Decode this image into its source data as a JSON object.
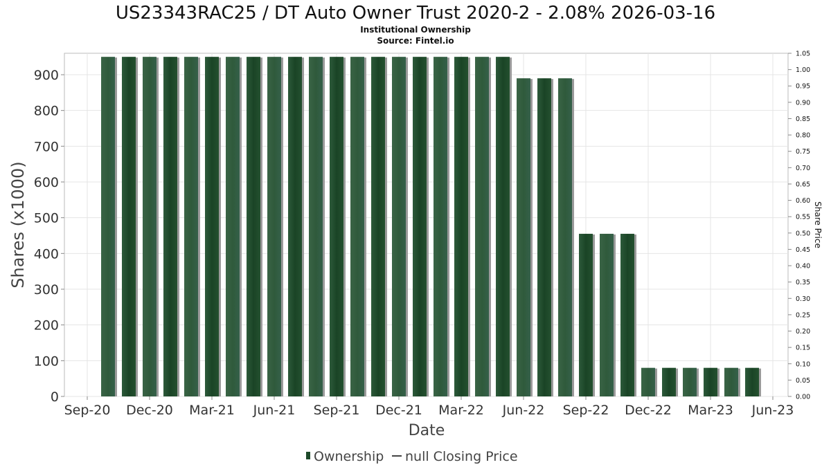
{
  "chart_data": {
    "type": "bar",
    "title": "US23343RAC25 / DT Auto Owner Trust 2020-2 - 2.08% 2026-03-16",
    "subtitle_lines": [
      "Institutional Ownership",
      "Source: Fintel.io"
    ],
    "xlabel": "Date",
    "ylabel": "Shares (x1000)",
    "y2label": "Share Price",
    "ylim": [
      0,
      960
    ],
    "y2lim": [
      0,
      1.05
    ],
    "yticks": [
      "0",
      "100",
      "200",
      "300",
      "400",
      "500",
      "600",
      "700",
      "800",
      "900"
    ],
    "y2ticks": [
      "0.00",
      "0.05",
      "0.10",
      "0.15",
      "0.20",
      "0.25",
      "0.30",
      "0.35",
      "0.40",
      "0.45",
      "0.50",
      "0.55",
      "0.60",
      "0.65",
      "0.70",
      "0.75",
      "0.80",
      "0.85",
      "0.90",
      "0.95",
      "1.00",
      "1.05"
    ],
    "xticks": [
      "Sep-20",
      "Dec-20",
      "Mar-21",
      "Jun-21",
      "Sep-21",
      "Dec-21",
      "Mar-22",
      "Jun-22",
      "Sep-22",
      "Dec-22",
      "Mar-23",
      "Jun-23"
    ],
    "grid": true,
    "legend_position": "bottom",
    "legend": [
      "Ownership",
      "null Closing Price"
    ],
    "bar_color": "#1e4a2a",
    "series": [
      {
        "name": "Ownership",
        "values": [
          950,
          950,
          950,
          950,
          950,
          950,
          950,
          950,
          950,
          950,
          950,
          950,
          950,
          950,
          950,
          950,
          950,
          950,
          950,
          950,
          890,
          890,
          890,
          455,
          455,
          455,
          80,
          80,
          80,
          80,
          80,
          80
        ]
      }
    ]
  }
}
